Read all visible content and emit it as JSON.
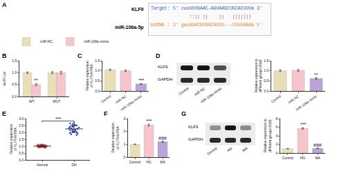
{
  "chart_data": [
    {
      "panel": "B",
      "type": "bar",
      "y_label": "luc/R-Luc",
      "categories": [
        "WT",
        "MUT"
      ],
      "series": [
        {
          "name": "miR-NC",
          "color": "#e9dfb6",
          "values": [
            1.0,
            1.0
          ],
          "errors": [
            0.03,
            0.04
          ]
        },
        {
          "name": "miR-106a mimic",
          "color": "#f6c4cb",
          "values": [
            0.5,
            1.0
          ],
          "errors": [
            0.04,
            0.05
          ]
        }
      ],
      "ylim": [
        0,
        1.5
      ],
      "yticks": [
        {
          "value": 0,
          "label": "0.0"
        },
        0.5,
        {
          "value": 1,
          "label": "1.0"
        },
        1.5
      ],
      "legend": "upper left",
      "annotations": [
        {
          "category": "WT",
          "series": "miR-106a mimic",
          "text": "**"
        }
      ]
    },
    {
      "panel": "C",
      "type": "bar",
      "y_label": "Relative expression of KLF9 mRNA",
      "categories": [
        "Control",
        "miR-NC",
        "miR-106a mimic"
      ],
      "values": [
        1.05,
        1.0,
        0.35
      ],
      "errors": [
        0.03,
        0.03,
        0.02
      ],
      "colors": [
        "#e9dfb6",
        "#f6c4cb",
        "#b9a3d9"
      ],
      "ylim": [
        0,
        1.5
      ],
      "yticks": [
        {
          "value": 0,
          "label": "0.0"
        },
        0.5,
        {
          "value": 1,
          "label": "1.0"
        },
        1.5
      ],
      "annotations": [
        {
          "category": "miR-106a mimic",
          "text": "***"
        }
      ]
    },
    {
      "panel": "D",
      "type": "bar",
      "y_label": "Relative expression in different groups (fold)",
      "categories": [
        "Control",
        "miR-NC",
        "miR-106a mimic"
      ],
      "values": [
        1.0,
        1.02,
        0.62
      ],
      "errors": [
        0.04,
        0.04,
        0.04
      ],
      "colors": [
        "#e9dfb6",
        "#f6c4cb",
        "#b9a3d9"
      ],
      "ylim": [
        0,
        1.5
      ],
      "yticks": [
        {
          "value": 0,
          "label": "0.0"
        },
        0.5,
        {
          "value": 1,
          "label": "1.0"
        },
        1.5
      ],
      "annotations": [
        {
          "category": "miR-106a mimic",
          "text": "**"
        }
      ]
    },
    {
      "panel": "E",
      "type": "strip",
      "y_label": "Relative expression of KLF9 mRNA",
      "categories": [
        "Normal",
        "DN"
      ],
      "values": [
        [
          0.92,
          1.05,
          0.98,
          1.1,
          0.95,
          1.02,
          0.88,
          1.07,
          0.99,
          1.12,
          0.94,
          1.01,
          0.97,
          1.08,
          0.9,
          1.04,
          0.96,
          1.0,
          1.09,
          0.93,
          1.03,
          0.91,
          1.06,
          0.98,
          1.11
        ],
        [
          2.1,
          2.4,
          1.9,
          2.6,
          2.2,
          2.0,
          2.7,
          2.3,
          1.8,
          2.5,
          2.2,
          2.1,
          2.4,
          1.95,
          2.35,
          2.55,
          2.05,
          2.25,
          2.65,
          1.85,
          2.45,
          2.15,
          2.3,
          2.0,
          2.5
        ]
      ],
      "means": [
        1.0,
        2.25
      ],
      "errors": [
        0.07,
        0.25
      ],
      "colors": [
        "#e23b3b",
        "#3347d4"
      ],
      "ylim": [
        0,
        3
      ],
      "yticks": [
        {
          "value": 0,
          "label": "0.0"
        },
        0.5,
        {
          "value": 1,
          "label": "1.0"
        },
        1.5,
        {
          "value": 2,
          "label": "2.0"
        },
        2.5,
        {
          "value": 3,
          "label": "3.0"
        }
      ],
      "annotations": [
        {
          "between": [
            "Normal",
            "DN"
          ],
          "text": "***"
        }
      ]
    },
    {
      "panel": "F",
      "type": "bar",
      "y_label": "Relative expression of KLF9 mRNA",
      "categories": [
        "Control",
        "HG",
        "MA"
      ],
      "values": [
        1.0,
        2.5,
        1.2
      ],
      "errors": [
        0.02,
        0.08,
        0.04
      ],
      "colors": [
        "#e9dfb6",
        "#f6c4cb",
        "#b9a3d9"
      ],
      "ylim": [
        0,
        3
      ],
      "yticks": [
        0,
        1,
        2,
        3
      ],
      "annotations": [
        {
          "category": "HG",
          "text": "***"
        },
        {
          "category": "MA",
          "text": "###"
        }
      ]
    },
    {
      "panel": "G",
      "type": "bar",
      "y_label": "Relative expression in different groups (fold)",
      "categories": [
        "Control",
        "HG",
        "MA"
      ],
      "values": [
        1.0,
        5.7,
        1.1
      ],
      "errors": [
        0.03,
        0.15,
        0.05
      ],
      "colors": [
        "#e9dfb6",
        "#f6c4cb",
        "#b9a3d9"
      ],
      "ylim": [
        0,
        8
      ],
      "yticks": [
        0,
        2,
        4,
        6,
        8
      ],
      "annotations": [
        {
          "category": "HG",
          "text": "***"
        },
        {
          "category": "MA",
          "text": "###"
        }
      ]
    }
  ],
  "diagram": {
    "panel": "A",
    "gene": "KLF9",
    "mirna": "miR-106a-5p",
    "target_label": "Target:",
    "target": "5' cuuUUUGAAC-AGUAAGCUGCACUUUa 3'",
    "pairing": "      ::|| ||    ||   |||||||",
    "mirna_label": "miRNA :",
    "mirna_seq": "3' gauGGACGUGACAUUU---CGUGAAAa 5'"
  },
  "blots": [
    {
      "panel": "D",
      "rows": [
        "KLF9",
        "GAPDH"
      ],
      "lanes": [
        "Control",
        "miR-NC",
        "miR-106a mimic"
      ]
    },
    {
      "panel": "G",
      "rows": [
        "KLF9",
        "GAPDH"
      ],
      "lanes": [
        "Control",
        "HG",
        "MA"
      ]
    }
  ]
}
